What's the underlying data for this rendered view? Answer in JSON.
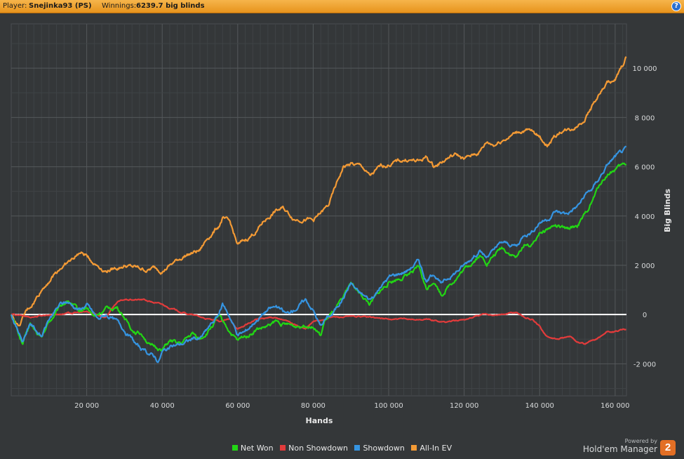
{
  "header": {
    "player_label": "Player:",
    "player_name": "Snejinka93 (PS)",
    "winnings_label": "Winnings:",
    "winnings_value": "6239.7 big blinds",
    "help_glyph": "?"
  },
  "branding": {
    "powered_by": "Powered by",
    "product": "Hold'em Manager",
    "logo_text": "2"
  },
  "colors": {
    "background": "#343739",
    "net_won": "#22d614",
    "non_showdown": "#e23b3b",
    "showdown": "#3594e1",
    "all_in_ev": "#f39a35",
    "zero_line": "#ffffff",
    "header_bar": "#f0a93b"
  },
  "chart_data": {
    "type": "line",
    "xlabel": "Hands",
    "ylabel": "Big Blinds",
    "xlim": [
      0,
      163000
    ],
    "ylim": [
      -3300,
      11800
    ],
    "x_ticks": [
      20000,
      40000,
      60000,
      80000,
      100000,
      120000,
      140000,
      160000
    ],
    "x_tick_labels": [
      "20 000",
      "40 000",
      "60 000",
      "80 000",
      "100 000",
      "120 000",
      "140 000",
      "160 000"
    ],
    "y_ticks": [
      -2000,
      0,
      2000,
      4000,
      6000,
      8000,
      10000
    ],
    "y_tick_labels": [
      "-2 000",
      "0",
      "2 000",
      "4 000",
      "6 000",
      "8 000",
      "10 000"
    ],
    "grid": true,
    "legend_position": "bottom",
    "series": [
      {
        "name": "Net Won",
        "color": "#22d614",
        "x": [
          0,
          3000,
          5000,
          8000,
          10000,
          13000,
          15000,
          18000,
          20000,
          22000,
          25000,
          28000,
          30000,
          32000,
          35000,
          37000,
          40000,
          42000,
          45000,
          48000,
          50000,
          52000,
          55000,
          57000,
          60000,
          62000,
          65000,
          68000,
          70000,
          72000,
          75000,
          78000,
          80000,
          82000,
          83000,
          85000,
          88000,
          90000,
          92000,
          95000,
          100000,
          105000,
          108000,
          110000,
          112000,
          114000,
          116000,
          120000,
          124000,
          126000,
          130000,
          134000,
          136000,
          138000,
          140000,
          142000,
          144000,
          147000,
          150000,
          152000,
          154000,
          156000,
          158000,
          160000,
          163000
        ],
        "y": [
          0,
          -1200,
          -400,
          -1000,
          -300,
          300,
          600,
          100,
          300,
          -100,
          200,
          300,
          -100,
          -600,
          -800,
          -1300,
          -1400,
          -1100,
          -1200,
          -800,
          -1000,
          -700,
          -100,
          -500,
          -1100,
          -900,
          -600,
          -500,
          -300,
          -400,
          -500,
          -400,
          -400,
          -900,
          -300,
          0,
          600,
          1300,
          900,
          400,
          1300,
          1600,
          1900,
          1000,
          1400,
          800,
          1200,
          1800,
          2400,
          2100,
          2700,
          2300,
          2900,
          2800,
          3400,
          3500,
          3600,
          3400,
          3600,
          4000,
          4600,
          5300,
          5700,
          5900,
          6100
        ]
      },
      {
        "name": "Non Showdown",
        "color": "#e23b3b",
        "x": [
          0,
          5000,
          10000,
          15000,
          20000,
          25000,
          28000,
          30000,
          35000,
          40000,
          45000,
          50000,
          55000,
          58000,
          60000,
          65000,
          70000,
          75000,
          78000,
          80000,
          85000,
          90000,
          95000,
          100000,
          105000,
          110000,
          115000,
          120000,
          125000,
          130000,
          134000,
          136000,
          138000,
          140000,
          142000,
          145000,
          148000,
          150000,
          152000,
          155000,
          158000,
          160000,
          163000
        ],
        "y": [
          0,
          -100,
          0,
          50,
          100,
          -100,
          500,
          600,
          600,
          400,
          100,
          -100,
          -300,
          -200,
          -600,
          -200,
          -100,
          -400,
          -600,
          -300,
          -100,
          -100,
          -100,
          -200,
          -200,
          -200,
          -300,
          -200,
          0,
          0,
          100,
          -100,
          -200,
          -500,
          -900,
          -1000,
          -900,
          -1100,
          -1200,
          -1000,
          -700,
          -700,
          -600
        ]
      },
      {
        "name": "Showdown",
        "color": "#3594e1",
        "x": [
          0,
          3000,
          5000,
          8000,
          10000,
          13000,
          15000,
          18000,
          20000,
          23000,
          25000,
          28000,
          30000,
          33000,
          35000,
          38000,
          39000,
          40000,
          43000,
          45000,
          48000,
          50000,
          52000,
          55000,
          56000,
          58000,
          60000,
          62000,
          65000,
          68000,
          70000,
          73000,
          75000,
          78000,
          80000,
          82000,
          83000,
          85000,
          88000,
          90000,
          92000,
          95000,
          100000,
          105000,
          108000,
          110000,
          112000,
          114000,
          116000,
          120000,
          124000,
          126000,
          130000,
          134000,
          136000,
          138000,
          140000,
          142000,
          144000,
          147000,
          150000,
          152000,
          154000,
          156000,
          158000,
          160000,
          163000
        ],
        "y": [
          0,
          -1100,
          -300,
          -900,
          -200,
          400,
          500,
          200,
          400,
          -200,
          0,
          -300,
          -600,
          -1200,
          -1500,
          -1700,
          -1900,
          -1500,
          -1300,
          -1200,
          -1000,
          -1000,
          -600,
          0,
          400,
          -100,
          -800,
          -700,
          -200,
          200,
          300,
          0,
          200,
          600,
          200,
          -500,
          -200,
          0,
          700,
          1300,
          900,
          600,
          1500,
          1800,
          2200,
          1300,
          1700,
          1200,
          1500,
          2000,
          2600,
          2300,
          2900,
          2800,
          3300,
          3400,
          3800,
          3900,
          4200,
          4100,
          4400,
          4800,
          5100,
          5600,
          6100,
          6400,
          6700
        ]
      },
      {
        "name": "All-In EV",
        "color": "#f39a35",
        "x": [
          0,
          2000,
          4000,
          6000,
          8000,
          10000,
          13000,
          16000,
          18000,
          20000,
          22000,
          25000,
          28000,
          30000,
          33000,
          36000,
          38000,
          40000,
          43000,
          46000,
          48000,
          50000,
          52000,
          55000,
          56000,
          58000,
          60000,
          62000,
          65000,
          67000,
          70000,
          72000,
          75000,
          78000,
          80000,
          82000,
          84000,
          86000,
          88000,
          90000,
          93000,
          95000,
          98000,
          100000,
          102000,
          105000,
          108000,
          110000,
          112000,
          114000,
          116000,
          118000,
          120000,
          124000,
          126000,
          128000,
          130000,
          134000,
          136000,
          138000,
          140000,
          142000,
          144000,
          146000,
          148000,
          150000,
          152000,
          154000,
          156000,
          158000,
          160000,
          162000,
          163000
        ],
        "y": [
          0,
          -500,
          100,
          500,
          1000,
          1400,
          1900,
          2200,
          2500,
          2400,
          2100,
          1800,
          1900,
          2000,
          1900,
          1800,
          1900,
          1800,
          2100,
          2400,
          2500,
          2600,
          3100,
          3600,
          3900,
          3700,
          2800,
          3000,
          3400,
          3800,
          4200,
          4300,
          3900,
          3900,
          3800,
          4100,
          4400,
          5200,
          6000,
          6100,
          6000,
          5600,
          6000,
          6100,
          6200,
          6300,
          6200,
          6400,
          6000,
          6200,
          6400,
          6500,
          6300,
          6600,
          7000,
          6900,
          7100,
          7400,
          7500,
          7400,
          7200,
          6900,
          7200,
          7500,
          7500,
          7700,
          8000,
          8500,
          9000,
          9400,
          9500,
          10100,
          10500
        ]
      }
    ]
  }
}
